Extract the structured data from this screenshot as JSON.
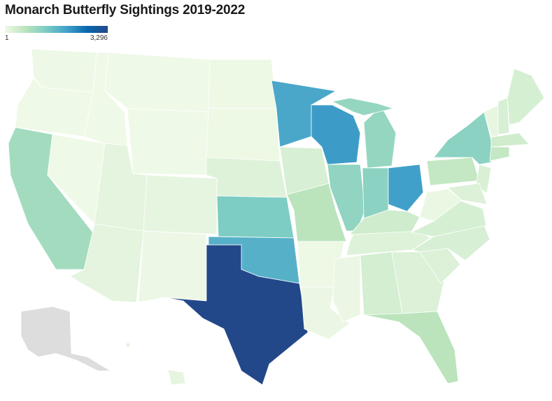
{
  "title": "Monarch Butterfly Sightings 2019-2022",
  "legend": {
    "min_label": "1",
    "max_label": "3,296",
    "min": 1,
    "max": 3296,
    "colors": [
      "#f0f9e8",
      "#bae4bc",
      "#7bccc4",
      "#43a2ca",
      "#0868ac",
      "#23488a"
    ]
  },
  "no_data_color": "#dddddd",
  "states": [
    {
      "id": "WA",
      "value": 20
    },
    {
      "id": "OR",
      "value": 15
    },
    {
      "id": "CA",
      "value": 900
    },
    {
      "id": "NV",
      "value": 10
    },
    {
      "id": "ID",
      "value": 10
    },
    {
      "id": "MT",
      "value": 8
    },
    {
      "id": "WY",
      "value": 8
    },
    {
      "id": "UT",
      "value": 150
    },
    {
      "id": "AZ",
      "value": 150
    },
    {
      "id": "CO",
      "value": 120
    },
    {
      "id": "NM",
      "value": 50
    },
    {
      "id": "ND",
      "value": 40
    },
    {
      "id": "SD",
      "value": 40
    },
    {
      "id": "NE",
      "value": 220
    },
    {
      "id": "KS",
      "value": 1300
    },
    {
      "id": "OK",
      "value": 1750
    },
    {
      "id": "TX",
      "value": 3296
    },
    {
      "id": "MN",
      "value": 1900
    },
    {
      "id": "IA",
      "value": 300
    },
    {
      "id": "MO",
      "value": 650
    },
    {
      "id": "AR",
      "value": 40
    },
    {
      "id": "LA",
      "value": 60
    },
    {
      "id": "WI",
      "value": 2050
    },
    {
      "id": "IL",
      "value": 1100
    },
    {
      "id": "MI",
      "value": 1050
    },
    {
      "id": "MI-UP",
      "value": 1050
    },
    {
      "id": "IN",
      "value": 1150
    },
    {
      "id": "OH",
      "value": 2000
    },
    {
      "id": "KY",
      "value": 400
    },
    {
      "id": "TN",
      "value": 220
    },
    {
      "id": "MS",
      "value": 60
    },
    {
      "id": "AL",
      "value": 350
    },
    {
      "id": "GA",
      "value": 250
    },
    {
      "id": "FL",
      "value": 650
    },
    {
      "id": "SC",
      "value": 250
    },
    {
      "id": "NC",
      "value": 300
    },
    {
      "id": "VA",
      "value": 330
    },
    {
      "id": "WV",
      "value": 70
    },
    {
      "id": "PA",
      "value": 550
    },
    {
      "id": "NY",
      "value": 1150
    },
    {
      "id": "NJ",
      "value": 280
    },
    {
      "id": "MD",
      "value": 250
    },
    {
      "id": "VT",
      "value": 100
    },
    {
      "id": "NH",
      "value": 300
    },
    {
      "id": "ME",
      "value": 330
    },
    {
      "id": "MA",
      "value": 400
    },
    {
      "id": "CT",
      "value": 550
    },
    {
      "id": "HI",
      "value": 120
    },
    {
      "id": "AK",
      "value": null
    }
  ]
}
